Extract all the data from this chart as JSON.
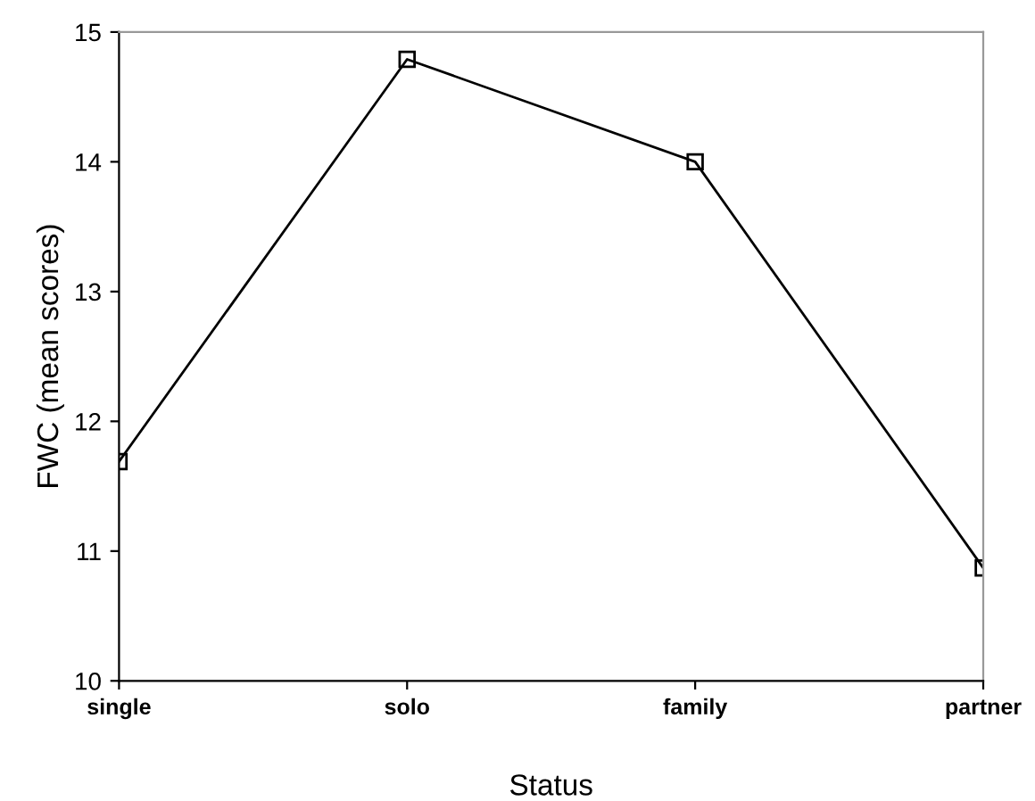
{
  "chart_data": {
    "type": "line",
    "xlabel": "Status",
    "ylabel": "FWC (mean scores)",
    "categories": [
      "single",
      "solo",
      "family",
      "partner"
    ],
    "series": [
      {
        "color": "#000000",
        "values": [
          11.69,
          14.79,
          14.0,
          10.87
        ]
      }
    ],
    "ylim": [
      10,
      15
    ],
    "yticks": [
      10,
      11,
      12,
      13,
      14,
      15
    ],
    "marker": "square",
    "line_style": "solid",
    "grid": false,
    "legend": false
  }
}
